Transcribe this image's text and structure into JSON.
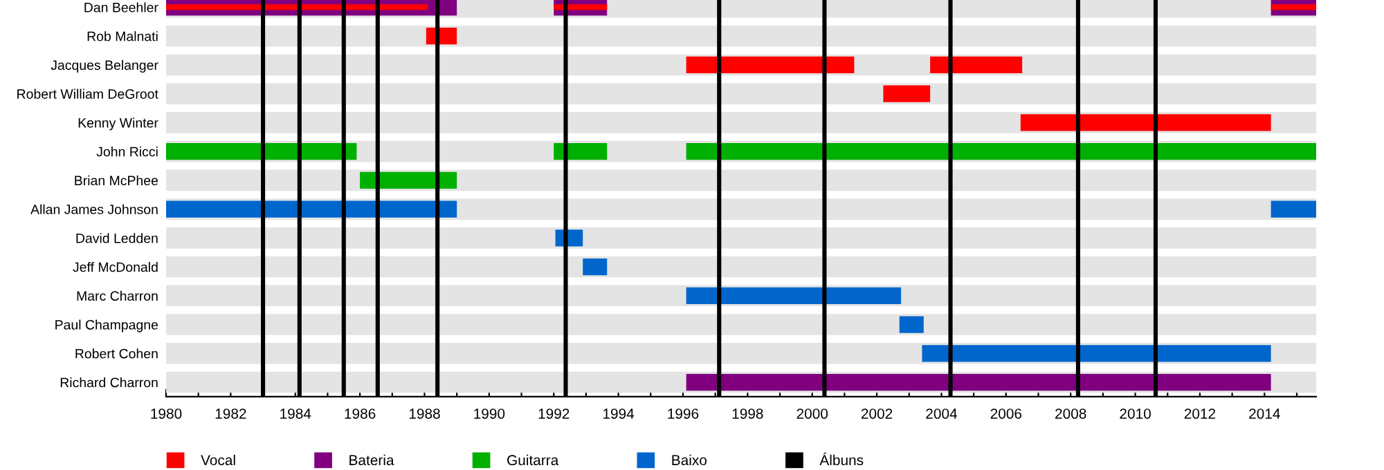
{
  "chart_data": {
    "type": "bar",
    "orientation": "horizontal",
    "categories": [
      "Dan Beehler",
      "Rob Malnati",
      "Jacques Belanger",
      "Robert William DeGroot",
      "Kenny Winter",
      "John Ricci",
      "Brian McPhee",
      "Allan James Johnson",
      "David Ledden",
      "Jeff McDonald",
      "Marc Charron",
      "Paul Champagne",
      "Robert Cohen",
      "Richard Charron"
    ],
    "series": [
      {
        "name": "Vocal",
        "color": "#ff0000",
        "base": [
          1980,
          1988.05,
          1996.1,
          2002.2,
          2006.45,
          null,
          null,
          null,
          null,
          null,
          null,
          null,
          null,
          null
        ],
        "values": [
          8.1,
          0.95,
          5.2,
          1.45,
          7.75,
          null,
          null,
          null,
          null,
          null,
          null,
          null,
          null,
          null
        ]
      },
      {
        "color": "#ff0000",
        "base": [
          1992,
          null,
          2003.65,
          null,
          null,
          null,
          null,
          null,
          null,
          null,
          null,
          null,
          null,
          null
        ],
        "values": [
          1.65,
          null,
          2.85,
          null,
          null,
          null,
          null,
          null,
          null,
          null,
          null,
          null,
          null,
          null
        ]
      },
      {
        "color": "#ff0000",
        "base": [
          2014.2,
          null,
          null,
          null,
          null,
          null,
          null,
          null,
          null,
          null,
          null,
          null,
          null,
          null
        ],
        "values": [
          1.4,
          null,
          null,
          null,
          null,
          null,
          null,
          null,
          null,
          null,
          null,
          null,
          null,
          null
        ]
      },
      {
        "name": "Bateria",
        "color": "#800080",
        "base": [
          1980,
          null,
          null,
          null,
          null,
          null,
          null,
          null,
          null,
          null,
          null,
          null,
          null,
          1996.1
        ],
        "values": [
          9,
          null,
          null,
          null,
          null,
          null,
          null,
          null,
          null,
          null,
          null,
          null,
          null,
          18.1
        ]
      },
      {
        "color": "#800080",
        "base": [
          1992,
          null,
          null,
          null,
          null,
          null,
          null,
          null,
          null,
          null,
          null,
          null,
          null,
          null
        ],
        "values": [
          1.65,
          null,
          null,
          null,
          null,
          null,
          null,
          null,
          null,
          null,
          null,
          null,
          null,
          null
        ]
      },
      {
        "color": "#800080",
        "base": [
          2014.2,
          null,
          null,
          null,
          null,
          null,
          null,
          null,
          null,
          null,
          null,
          null,
          null,
          null
        ],
        "values": [
          1.4,
          null,
          null,
          null,
          null,
          null,
          null,
          null,
          null,
          null,
          null,
          null,
          null,
          null
        ]
      },
      {
        "name": "Guitarra",
        "color": "#00b000",
        "base": [
          null,
          null,
          null,
          null,
          null,
          1980,
          1986,
          null,
          null,
          null,
          null,
          null,
          null,
          null
        ],
        "values": [
          null,
          null,
          null,
          null,
          null,
          5.9,
          3,
          null,
          null,
          null,
          null,
          null,
          null,
          null
        ]
      },
      {
        "color": "#00b000",
        "base": [
          null,
          null,
          null,
          null,
          null,
          1992,
          null,
          null,
          null,
          null,
          null,
          null,
          null,
          null
        ],
        "values": [
          null,
          null,
          null,
          null,
          null,
          1.65,
          null,
          null,
          null,
          null,
          null,
          null,
          null,
          null
        ]
      },
      {
        "color": "#00b000",
        "base": [
          null,
          null,
          null,
          null,
          null,
          1996.1,
          null,
          null,
          null,
          null,
          null,
          null,
          null,
          null
        ],
        "values": [
          null,
          null,
          null,
          null,
          null,
          19.5,
          null,
          null,
          null,
          null,
          null,
          null,
          null,
          null
        ]
      },
      {
        "name": "Baixo",
        "color": "#0066cc",
        "base": [
          null,
          null,
          null,
          null,
          null,
          null,
          null,
          1980,
          1992.05,
          1992.9,
          1996.1,
          2002.7,
          2003.4,
          null
        ],
        "values": [
          null,
          null,
          null,
          null,
          null,
          null,
          null,
          9,
          0.85,
          0.75,
          6.65,
          0.75,
          10.8,
          null
        ]
      },
      {
        "color": "#0066cc",
        "base": [
          null,
          null,
          null,
          null,
          null,
          null,
          null,
          2014.2,
          null,
          null,
          null,
          null,
          null,
          null
        ],
        "values": [
          null,
          null,
          null,
          null,
          null,
          null,
          null,
          1.4,
          null,
          null,
          null,
          null,
          null,
          null
        ]
      }
    ],
    "ref_lines": [
      {
        "axis": "x",
        "value": 1983.0,
        "label": "Álbuns",
        "color": "#000000"
      },
      {
        "axis": "x",
        "value": 1984.13,
        "color": "#000000"
      },
      {
        "axis": "x",
        "value": 1985.5,
        "color": "#000000"
      },
      {
        "axis": "x",
        "value": 1986.55,
        "color": "#000000"
      },
      {
        "axis": "x",
        "value": 1988.4,
        "color": "#000000"
      },
      {
        "axis": "x",
        "value": 1992.37,
        "color": "#000000"
      },
      {
        "axis": "x",
        "value": 1997.12,
        "color": "#000000"
      },
      {
        "axis": "x",
        "value": 2000.38,
        "color": "#000000"
      },
      {
        "axis": "x",
        "value": 2004.28,
        "color": "#000000"
      },
      {
        "axis": "x",
        "value": 2008.23,
        "color": "#000000"
      },
      {
        "axis": "x",
        "value": 2010.63,
        "color": "#000000"
      }
    ],
    "xlim": [
      1980,
      2015.6
    ],
    "xticks": [
      1980,
      {
        "value": 1981,
        "label": null
      },
      1982,
      {
        "value": 1983,
        "label": null
      },
      1984,
      {
        "value": 1985,
        "label": null
      },
      1986,
      {
        "value": 1987,
        "label": null
      },
      1988,
      {
        "value": 1989,
        "label": null
      },
      1990,
      {
        "value": 1991,
        "label": null
      },
      1992,
      {
        "value": 1993,
        "label": null
      },
      1994,
      {
        "value": 1995,
        "label": null
      },
      1996,
      {
        "value": 1997,
        "label": null
      },
      1998,
      {
        "value": 1999,
        "label": null
      },
      2000,
      {
        "value": 2001,
        "label": null
      },
      2002,
      {
        "value": 2003,
        "label": null
      },
      2004,
      {
        "value": 2005,
        "label": null
      },
      2006,
      {
        "value": 2007,
        "label": null
      },
      2008,
      {
        "value": 2009,
        "label": null
      },
      2010,
      {
        "value": 2011,
        "label": null
      },
      2012,
      {
        "value": 2013,
        "label": null
      },
      2014,
      {
        "value": 2015,
        "label": null
      }
    ],
    "grid": "y",
    "legend": "bottom left"
  }
}
